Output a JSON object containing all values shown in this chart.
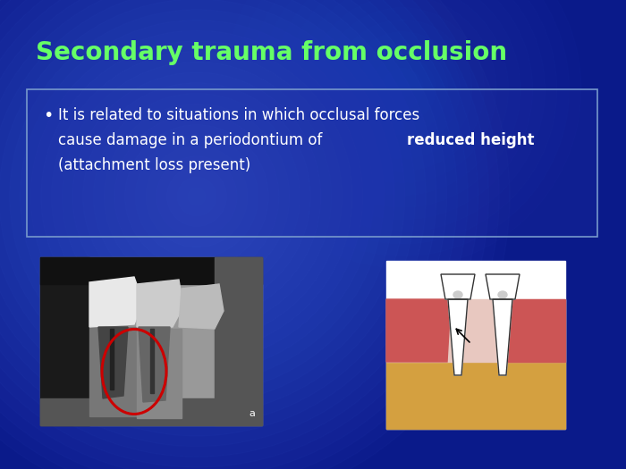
{
  "title": "Secondary trauma from occlusion",
  "title_color": "#66ff66",
  "title_fontsize": 20,
  "title_fontweight": "bold",
  "bullet_line1": "It is related to situations in which occlusal forces",
  "bullet_line2_plain": "cause damage in a periodontium of ",
  "bullet_line2_bold": "reduced height",
  "bullet_line3": "(attachment loss present)",
  "text_color": "#ffffff",
  "bullet_fontsize": 12,
  "box_edge_color": "#7799cc",
  "figsize": [
    7.0,
    5.25
  ],
  "dpi": 100,
  "bg_center_color": "#1a3aaa",
  "bg_edge_color": "#000055"
}
